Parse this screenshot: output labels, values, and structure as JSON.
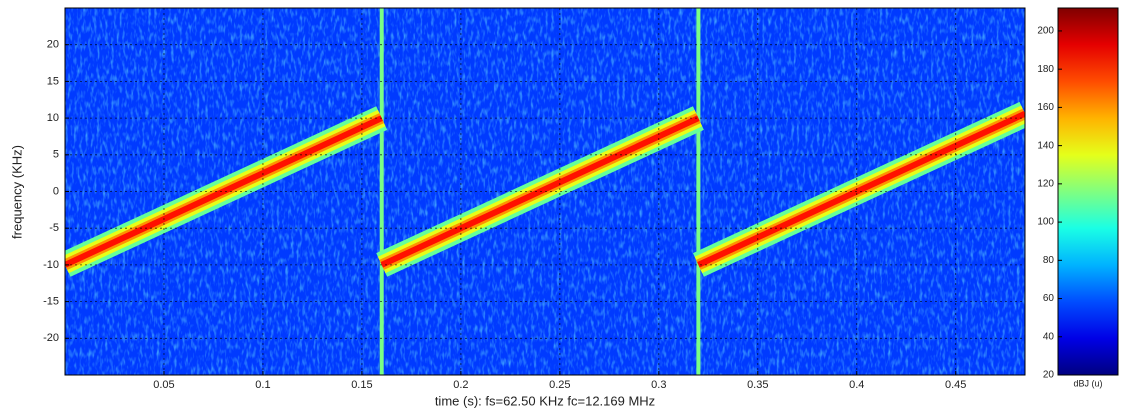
{
  "chart_data": {
    "type": "spectrogram",
    "xlabel": "time (s): fs=62.50 KHz   fc=12.169 MHz",
    "ylabel": "frequency (KHz)",
    "xlim": [
      0,
      0.485
    ],
    "ylim": [
      -25,
      25
    ],
    "xticks": [
      0.05,
      0.1,
      0.15,
      0.2,
      0.25,
      0.3,
      0.35,
      0.4,
      0.45
    ],
    "yticks": [
      -20,
      -15,
      -10,
      -5,
      0,
      5,
      10,
      15,
      20
    ],
    "grid": true,
    "background_level": 55,
    "chirps": {
      "start_times": [
        0,
        0.16,
        0.32
      ],
      "end_times": [
        0.16,
        0.32,
        0.485
      ],
      "start_freqs": [
        -10,
        -10,
        -10
      ],
      "end_freqs": [
        10,
        10,
        10.6
      ],
      "levels": [
        185,
        185,
        185
      ]
    },
    "pulses": {
      "times": [
        0.16,
        0.32
      ],
      "levels": [
        115,
        115
      ]
    },
    "colorbar": {
      "label": "dBJ (u)",
      "lim": [
        20,
        212
      ],
      "ticks": [
        20,
        40,
        60,
        80,
        100,
        120,
        140,
        160,
        180,
        200
      ]
    }
  }
}
